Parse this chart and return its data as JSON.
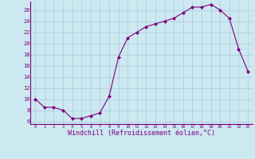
{
  "x": [
    0,
    1,
    2,
    3,
    4,
    5,
    6,
    7,
    8,
    9,
    10,
    11,
    12,
    13,
    14,
    15,
    16,
    17,
    18,
    19,
    20,
    21,
    22,
    23
  ],
  "y": [
    10,
    8.5,
    8.5,
    8,
    6.5,
    6.5,
    7,
    7.5,
    10.5,
    17.5,
    21,
    22,
    23,
    23.5,
    24,
    24.5,
    25.5,
    26.5,
    26.5,
    27,
    26,
    24.5,
    19,
    15
  ],
  "line_color": "#800080",
  "marker": "D",
  "marker_size": 2,
  "bg_color": "#cce8f0",
  "grid_color": "#aaccdd",
  "xlabel": "Windchill (Refroidissement éolien,°C)",
  "xlabel_color": "#800080",
  "tick_color": "#800080",
  "ylim": [
    5.5,
    27.5
  ],
  "xlim": [
    -0.5,
    23.5
  ],
  "yticks": [
    6,
    8,
    10,
    12,
    14,
    16,
    18,
    20,
    22,
    24,
    26
  ],
  "xticks": [
    0,
    1,
    2,
    3,
    4,
    5,
    6,
    7,
    8,
    9,
    10,
    11,
    12,
    13,
    14,
    15,
    16,
    17,
    18,
    19,
    20,
    21,
    22,
    23
  ],
  "font_family": "monospace",
  "xlabel_fontsize": 6,
  "xtick_fontsize": 4,
  "ytick_fontsize": 5
}
